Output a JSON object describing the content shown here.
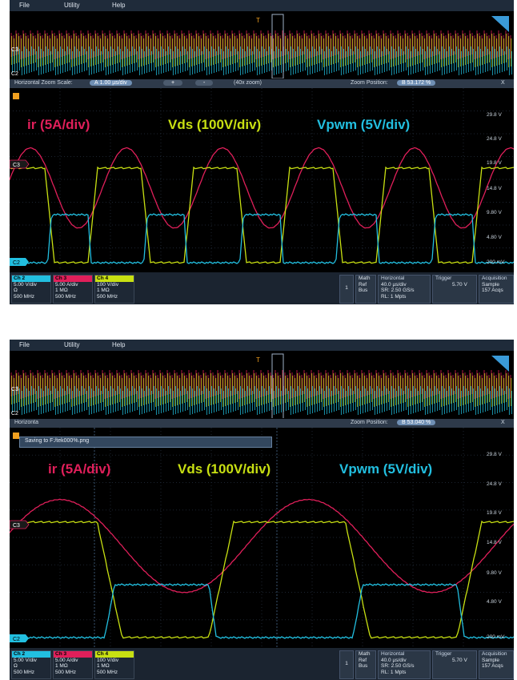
{
  "menu": {
    "file": "File",
    "utility": "Utility",
    "help": "Help"
  },
  "screens": [
    {
      "zoom_scale_label": "Horizontal Zoom Scale:",
      "zoom_scale_marker": "A",
      "zoom_scale_value": "1.00 µs/div",
      "zoom_plus": "+",
      "zoom_minus": "-",
      "zoom_factor": "(40x zoom)",
      "zoom_position_label": "Zoom Position:",
      "zoom_position_marker": "B",
      "zoom_position_value": "53.172 %",
      "close": "X",
      "save_message": ""
    },
    {
      "zoom_scale_label": "Horizonta",
      "save_message": "Saving to F:/tek000%.png",
      "zoom_position_label": "Zoom Position:",
      "zoom_position_marker": "B",
      "zoom_position_value": "53.040 %",
      "close": "X"
    }
  ],
  "legend": {
    "ir": "ir (5A/div)",
    "vds": "Vds (100V/div)",
    "vpwm": "Vpwm (5V/div)"
  },
  "colors": {
    "ir": "#e01f5a",
    "vds": "#c8e012",
    "vpwm": "#22bfe0"
  },
  "voltage_labels": [
    "29.8 V",
    "24.8 V",
    "19.8 V",
    "14.8 V",
    "9.80 V",
    "4.80 V",
    "200 mV"
  ],
  "channel_markers": {
    "c3": "C3",
    "c2": "C2"
  },
  "bottom": {
    "ch2": {
      "name": "Ch 2",
      "l1": "5.00 V/div",
      "l2": "Ω",
      "l3": "500 MHz"
    },
    "ch3": {
      "name": "Ch 3",
      "l1": "5.00 A/div",
      "l2": "1 MΩ",
      "l3": "500 MHz"
    },
    "ch4": {
      "name": "Ch 4",
      "l1": "100 V/div",
      "l2": "1 MΩ",
      "l3": "500 MHz"
    },
    "one": "1",
    "math": [
      "Math",
      "Ref",
      "Bus"
    ],
    "horizontal": [
      "Horizontal",
      "40.0 µs/div",
      "SR: 2.50 GS/s",
      "RL: 1 Mpts"
    ],
    "trigger": [
      "Trigger",
      "5.70 V"
    ],
    "acquisition": [
      "Acquisition",
      "Sample",
      "157 Acqs"
    ]
  }
}
